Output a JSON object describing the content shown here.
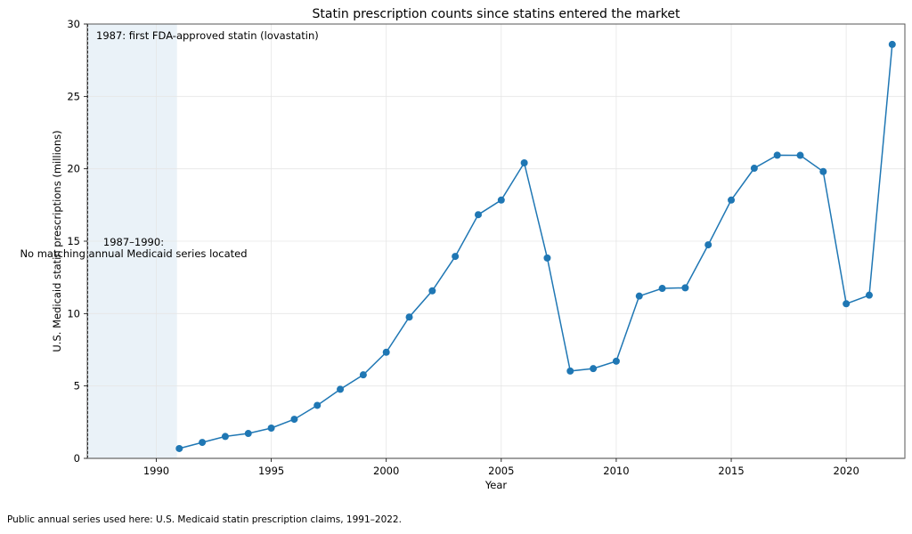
{
  "chart_data": {
    "type": "line",
    "title": "Statin prescription counts since statins entered the market",
    "xlabel": "Year",
    "ylabel": "U.S. Medicaid statin prescriptions (millions)",
    "xlim": [
      1987,
      2022.55
    ],
    "ylim": [
      0,
      30
    ],
    "xticks": [
      1990,
      1995,
      2000,
      2005,
      2010,
      2015,
      2020
    ],
    "yticks": [
      0,
      5,
      10,
      15,
      20,
      25,
      30
    ],
    "grid": true,
    "series": [
      {
        "name": "U.S. Medicaid statin prescription claims",
        "color": "#1f77b4",
        "marker": "circle",
        "x": [
          1991,
          1992,
          1993,
          1994,
          1995,
          1996,
          1997,
          1998,
          1999,
          2000,
          2001,
          2002,
          2003,
          2004,
          2005,
          2006,
          2007,
          2008,
          2009,
          2010,
          2011,
          2012,
          2013,
          2014,
          2015,
          2016,
          2017,
          2018,
          2019,
          2020,
          2021,
          2022
        ],
        "values": [
          0.68,
          1.1,
          1.51,
          1.72,
          2.09,
          2.7,
          3.66,
          4.77,
          5.77,
          7.33,
          9.76,
          11.57,
          13.95,
          16.83,
          17.84,
          20.41,
          13.84,
          6.03,
          6.2,
          6.71,
          11.21,
          11.74,
          11.78,
          14.75,
          17.84,
          20.04,
          20.94,
          20.93,
          19.81,
          10.68,
          11.27,
          28.59
        ]
      }
    ],
    "shaded_region": {
      "x_range": [
        1987,
        1990.9
      ],
      "color": "#eaf2f8",
      "label_line1": "1987–1990:",
      "label_line2": "No matching annual Medicaid series located"
    },
    "vline": {
      "x": 1987,
      "style": "dashed",
      "color": "#000000"
    },
    "annotations": [
      {
        "text": "1987: first FDA-approved statin (lovastatin)",
        "x": 1987.4,
        "y": 29.2
      }
    ]
  },
  "footnote": "Public annual series used here: U.S. Medicaid statin prescription claims, 1991–2022."
}
